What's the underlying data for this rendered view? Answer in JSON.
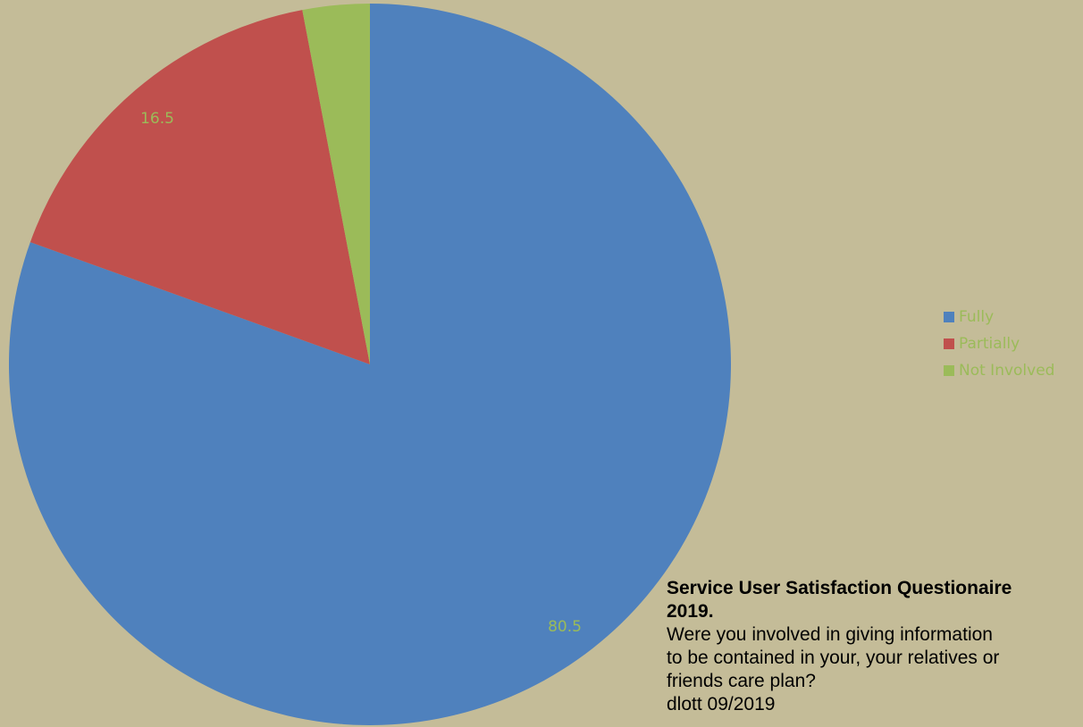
{
  "chart_data": {
    "type": "pie",
    "categories": [
      "Fully",
      "Partially",
      "Not Involved"
    ],
    "values": [
      80.5,
      16.5,
      3
    ],
    "colors": [
      "#4f81bd",
      "#c0504d",
      "#9bbb59"
    ],
    "data_labels": [
      "80.5",
      "16.5",
      ""
    ],
    "label_color": "#9bbb59",
    "start_angle_deg": 0,
    "direction": "clockwise",
    "legend_position": "right"
  },
  "caption": {
    "title_line1": "Service User Satisfaction Questionaire",
    "title_line2": "2019.",
    "question_line1": "Were you involved in giving information",
    "question_line2": "to be contained in your, your relatives or",
    "question_line3": "friends care plan?",
    "credit": "dlott 09/2019"
  }
}
